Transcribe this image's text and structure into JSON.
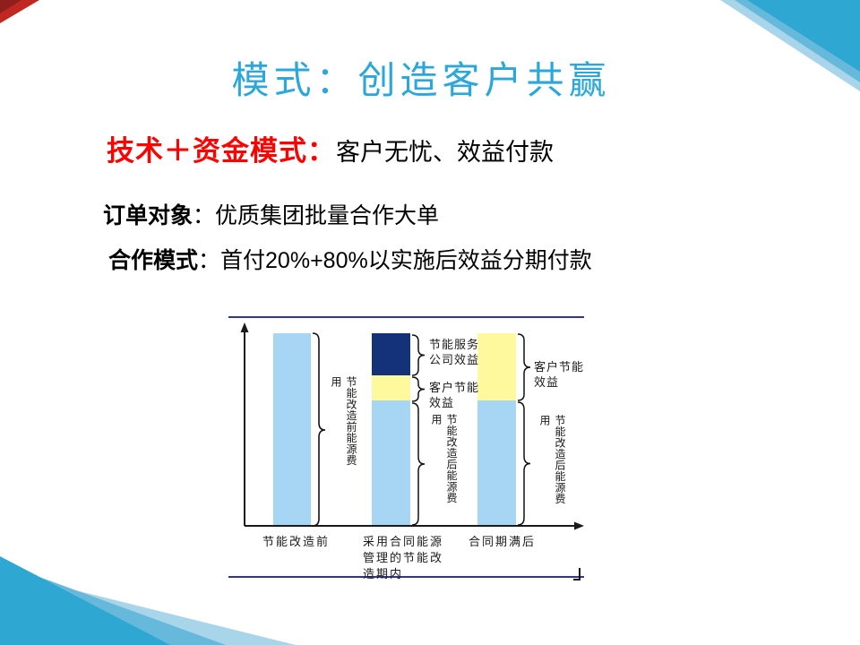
{
  "slide_title": "模式：创造客户共赢",
  "paragraphs": {
    "p1_label": "技术＋资金模式：",
    "p1_text": "客户无忧、效益付款",
    "p2_label": "订单对象",
    "p2_colon": "：",
    "p2_text": "优质集团批量合作大单",
    "p3_label": "合作模式",
    "p3_colon": "：",
    "p3_text": "首付20%+80%以实施后效益分期付款"
  },
  "colors": {
    "title_blue": "#2BA7DA",
    "accent_red": "#FA0300",
    "bar_light_blue": "#A6D6F3",
    "bar_yellow": "#FDF99C",
    "bar_navy": "#133279",
    "corner_cyan_main": "#2EA7D2",
    "corner_cyan_mid": "#66B9DB",
    "corner_cyan_light": "#A9D5EA",
    "corner_red": "#C22822",
    "image_border_blue": "#32329B"
  },
  "chart_data": {
    "type": "bar",
    "stacked": true,
    "title": "",
    "xlabel": "",
    "ylabel": "",
    "ylim": [
      0,
      100
    ],
    "unit": "relative energy cost (pre-retrofit bar = 100)",
    "axis_style": "plain black arrow axes, no ticks, no gridlines, labels via curly braces",
    "categories": [
      "节能改造前",
      "采用合同能源管理的节能改造期内",
      "合同期满后"
    ],
    "bars": [
      {
        "category": "节能改造前",
        "segments": [
          {
            "label": "节能改造前能源费用",
            "value": 100,
            "color": "#A6D6F3"
          }
        ]
      },
      {
        "category": "采用合同能源管理的节能改造期内",
        "segments": [
          {
            "label": "节能改造后能源费用",
            "value": 65,
            "color": "#A6D6F3"
          },
          {
            "label": "客户节能效益",
            "value": 13,
            "color": "#FDF99C"
          },
          {
            "label": "节能服务公司效益",
            "value": 22,
            "color": "#133279"
          }
        ]
      },
      {
        "category": "合同期满后",
        "segments": [
          {
            "label": "节能改造后能源费用",
            "value": 65,
            "color": "#A6D6F3"
          },
          {
            "label": "客户节能效益",
            "value": 35,
            "color": "#FDF99C"
          }
        ]
      }
    ]
  }
}
